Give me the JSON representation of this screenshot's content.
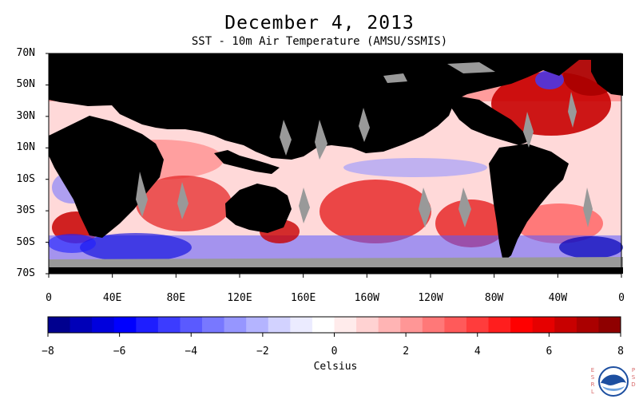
{
  "title": "December 4, 2013",
  "subtitle": "SST - 10m Air Temperature (AMSU/SSMIS)",
  "map": {
    "lat_labels": [
      "70N",
      "50N",
      "30N",
      "10N",
      "10S",
      "30S",
      "50S",
      "70S"
    ],
    "lat_values": [
      70,
      50,
      30,
      10,
      -10,
      -30,
      -50,
      -70
    ],
    "lon_labels": [
      "0",
      "40E",
      "80E",
      "120E",
      "160E",
      "160W",
      "120W",
      "80W",
      "40W",
      "0"
    ],
    "lon_values": [
      0,
      40,
      80,
      120,
      160,
      200,
      240,
      280,
      320,
      360
    ],
    "lat_range": [
      -70,
      70
    ],
    "lon_range": [
      0,
      360
    ],
    "colors": {
      "land": "#000000",
      "no_data": "#999999",
      "ocean_default": "#ffd9d9"
    }
  },
  "colorbar": {
    "tick_labels": [
      "−8",
      "−6",
      "−4",
      "−2",
      "0",
      "2",
      "4",
      "6",
      "8"
    ],
    "tick_values": [
      -8,
      -6,
      -4,
      -2,
      0,
      2,
      4,
      6,
      8
    ],
    "range": [
      -8,
      8
    ],
    "unit_label": "Celsius",
    "colors": [
      "#00008f",
      "#0000b8",
      "#0000dd",
      "#0000ff",
      "#1e1eff",
      "#3c3cff",
      "#5a5aff",
      "#7878ff",
      "#9696ff",
      "#b4b4ff",
      "#d2d2ff",
      "#ebebff",
      "#ffffff",
      "#ffebeb",
      "#ffd2d2",
      "#ffb4b4",
      "#ff9696",
      "#ff7878",
      "#ff5a5a",
      "#ff3c3c",
      "#ff1e1e",
      "#ff0000",
      "#e60000",
      "#c80000",
      "#aa0000",
      "#8f0000"
    ]
  },
  "logo": {
    "icon": "noaa-logo-icon",
    "side_left": "ESRL",
    "side_right": "PSD"
  }
}
